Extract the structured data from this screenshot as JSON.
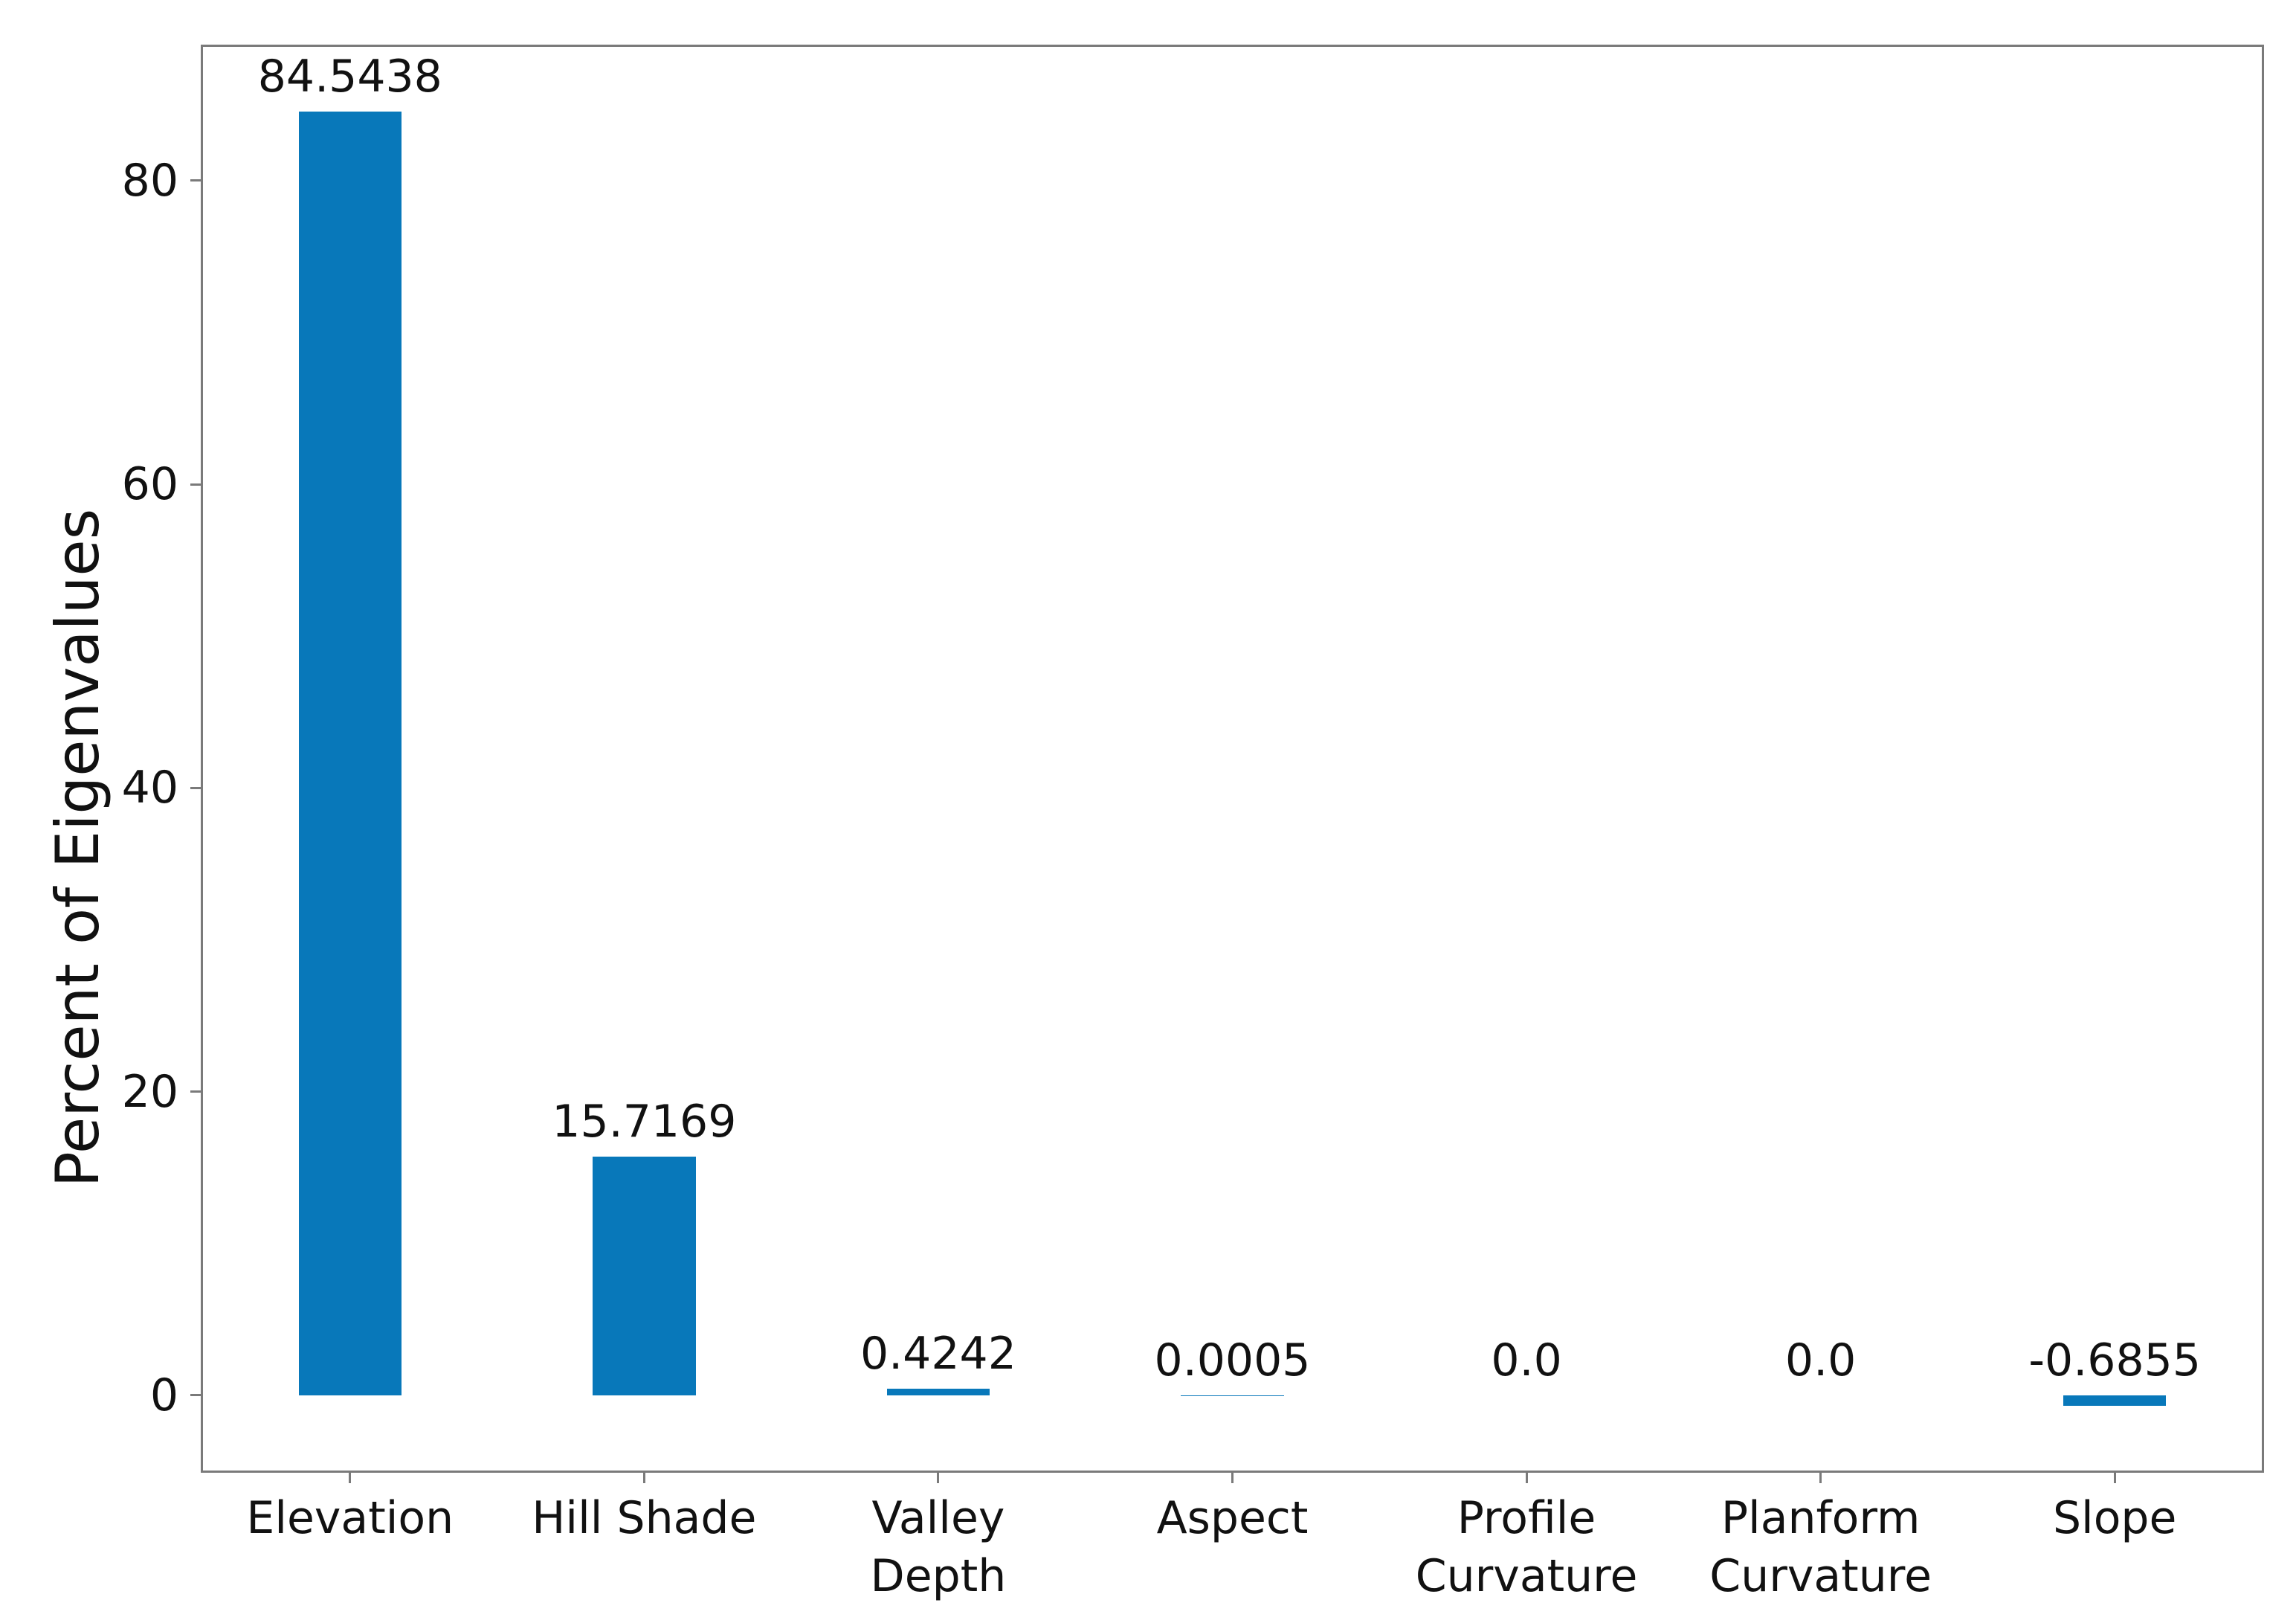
{
  "figure": {
    "background": "#ffffff",
    "bar_color": "#0878ba",
    "spine_color": "#7a7a7a",
    "text_color": "#111111"
  },
  "chart_data": {
    "type": "bar",
    "title": "",
    "xlabel": "",
    "ylabel": "Percent of Eigenvalues",
    "categories": [
      "Elevation",
      "Hill Shade",
      "Valley\nDepth",
      "Aspect",
      "Profile\nCurvature",
      "Planform\nCurvature",
      "Slope"
    ],
    "values": [
      84.5438,
      15.7169,
      0.4242,
      0.0005,
      0.0,
      0.0,
      -0.6855
    ],
    "bar_labels": [
      "84.5438",
      "15.7169",
      "0.4242",
      "0.0005",
      "0.0",
      "0.0",
      "-0.6855"
    ],
    "yticks": [
      0,
      20,
      40,
      60,
      80
    ],
    "ytick_labels": [
      "0",
      "20",
      "40",
      "60",
      "80"
    ],
    "ylim": [
      -4.95,
      88.81
    ],
    "grid": false,
    "legend_position": "none",
    "bar_width_fraction": 0.35
  }
}
